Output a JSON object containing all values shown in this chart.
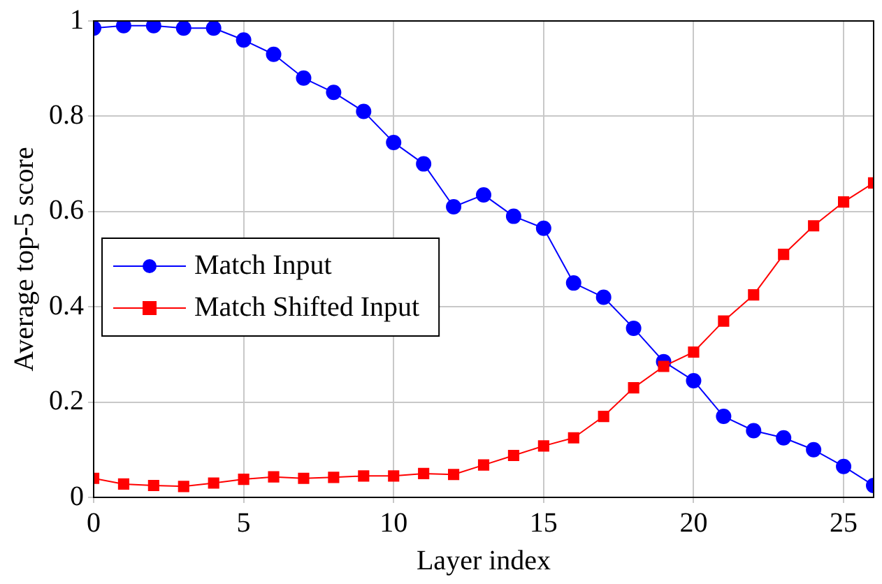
{
  "chart_data": {
    "type": "line",
    "xlabel": "Layer index",
    "ylabel": "Average top-5 score",
    "x": [
      0,
      1,
      2,
      3,
      4,
      5,
      6,
      7,
      8,
      9,
      10,
      11,
      12,
      13,
      14,
      15,
      16,
      17,
      18,
      19,
      20,
      21,
      22,
      23,
      24,
      25,
      26
    ],
    "series": [
      {
        "name": "Match Input",
        "color": "#0000ff",
        "marker": "circle",
        "values": [
          0.985,
          0.99,
          0.99,
          0.985,
          0.985,
          0.96,
          0.93,
          0.88,
          0.85,
          0.81,
          0.745,
          0.7,
          0.61,
          0.635,
          0.59,
          0.565,
          0.45,
          0.42,
          0.355,
          0.285,
          0.245,
          0.17,
          0.14,
          0.125,
          0.1,
          0.065,
          0.025
        ]
      },
      {
        "name": "Match Shifted Input",
        "color": "#ff0000",
        "marker": "square",
        "values": [
          0.04,
          0.028,
          0.025,
          0.023,
          0.03,
          0.038,
          0.043,
          0.04,
          0.042,
          0.045,
          0.045,
          0.05,
          0.048,
          0.068,
          0.088,
          0.108,
          0.125,
          0.17,
          0.23,
          0.275,
          0.305,
          0.37,
          0.425,
          0.51,
          0.57,
          0.62,
          0.66
        ]
      }
    ],
    "xlim": [
      0,
      26
    ],
    "xticks": [
      0,
      5,
      10,
      15,
      20,
      25
    ],
    "ylim": [
      0,
      1
    ],
    "yticks": [
      0,
      0.2,
      0.4,
      0.6,
      0.8,
      1
    ],
    "grid": true,
    "legend": "left"
  }
}
